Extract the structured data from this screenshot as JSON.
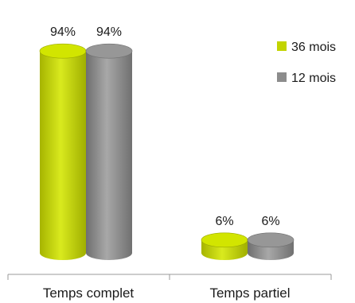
{
  "chart_data": {
    "type": "bar",
    "style": "3d-cylinder",
    "categories": [
      "Temps complet",
      "Temps partiel"
    ],
    "series": [
      {
        "name": "36 mois",
        "values": [
          94,
          6
        ],
        "labels": [
          "94%",
          "6%"
        ],
        "color": "#c2d400"
      },
      {
        "name": "12 mois",
        "values": [
          94,
          6
        ],
        "labels": [
          "94%",
          "6%"
        ],
        "color": "#8c8c8c"
      }
    ],
    "ylim": [
      0,
      100
    ],
    "unit": "%",
    "grid": false,
    "legend": "top-right"
  }
}
